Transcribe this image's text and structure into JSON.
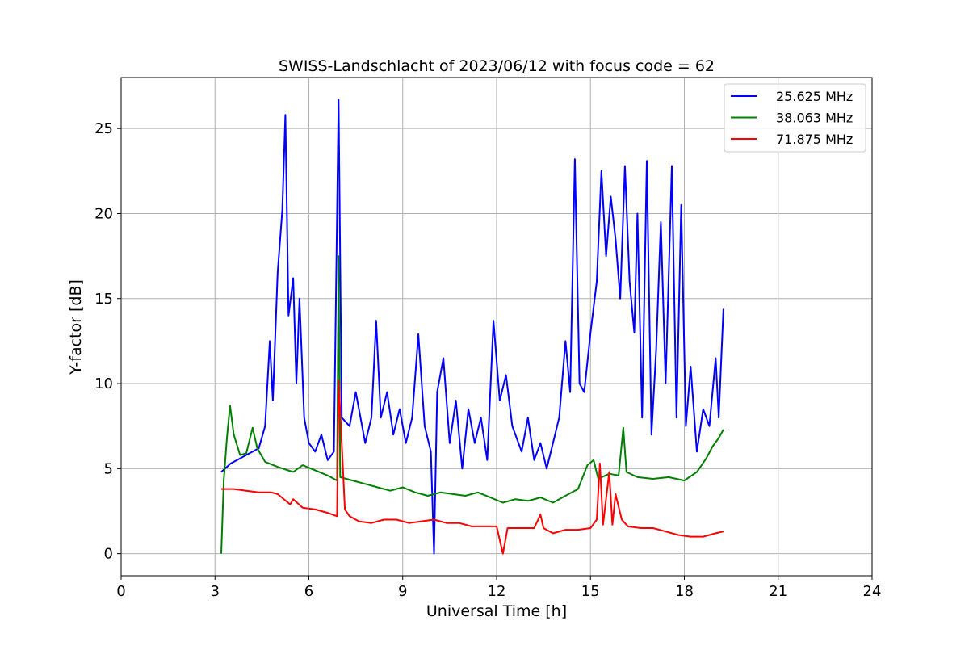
{
  "chart_data": {
    "type": "line",
    "title": "SWISS-Landschlacht of 2023/06/12 with focus code = 62",
    "xlabel": "Universal Time [h]",
    "ylabel": "Y-factor [dB]",
    "xlim": [
      0,
      24
    ],
    "ylim": [
      -1.3,
      28
    ],
    "xticks": [
      0,
      3,
      6,
      9,
      12,
      15,
      18,
      21,
      24
    ],
    "yticks": [
      0,
      5,
      10,
      15,
      20,
      25
    ],
    "grid": true,
    "legend_position": "top-right",
    "series": [
      {
        "name": "25.625 MHz",
        "color": "#0000ff",
        "points": [
          [
            3.2,
            4.8
          ],
          [
            3.5,
            5.3
          ],
          [
            3.8,
            5.6
          ],
          [
            4.1,
            5.9
          ],
          [
            4.4,
            6.2
          ],
          [
            4.6,
            7.5
          ],
          [
            4.75,
            12.5
          ],
          [
            4.85,
            9.0
          ],
          [
            5.0,
            16.5
          ],
          [
            5.15,
            20.2
          ],
          [
            5.25,
            25.8
          ],
          [
            5.35,
            14.0
          ],
          [
            5.5,
            16.2
          ],
          [
            5.6,
            10.0
          ],
          [
            5.7,
            15.0
          ],
          [
            5.85,
            8.0
          ],
          [
            6.0,
            6.5
          ],
          [
            6.2,
            6.0
          ],
          [
            6.4,
            7.0
          ],
          [
            6.6,
            5.5
          ],
          [
            6.8,
            6.0
          ],
          [
            6.95,
            26.7
          ],
          [
            7.05,
            8.0
          ],
          [
            7.3,
            7.5
          ],
          [
            7.5,
            9.5
          ],
          [
            7.8,
            6.5
          ],
          [
            8.0,
            8.0
          ],
          [
            8.15,
            13.7
          ],
          [
            8.3,
            8.0
          ],
          [
            8.5,
            9.5
          ],
          [
            8.7,
            7.0
          ],
          [
            8.9,
            8.5
          ],
          [
            9.1,
            6.5
          ],
          [
            9.3,
            8.0
          ],
          [
            9.5,
            12.9
          ],
          [
            9.7,
            7.5
          ],
          [
            9.9,
            6.0
          ],
          [
            10.0,
            0.0
          ],
          [
            10.1,
            9.5
          ],
          [
            10.3,
            11.5
          ],
          [
            10.5,
            6.5
          ],
          [
            10.7,
            9.0
          ],
          [
            10.9,
            5.0
          ],
          [
            11.1,
            8.5
          ],
          [
            11.3,
            6.5
          ],
          [
            11.5,
            8.0
          ],
          [
            11.7,
            5.5
          ],
          [
            11.9,
            13.7
          ],
          [
            12.1,
            9.0
          ],
          [
            12.3,
            10.5
          ],
          [
            12.5,
            7.5
          ],
          [
            12.8,
            6.0
          ],
          [
            13.0,
            8.0
          ],
          [
            13.2,
            5.5
          ],
          [
            13.4,
            6.5
          ],
          [
            13.6,
            5.0
          ],
          [
            13.8,
            6.5
          ],
          [
            14.0,
            8.0
          ],
          [
            14.2,
            12.5
          ],
          [
            14.35,
            9.5
          ],
          [
            14.5,
            23.2
          ],
          [
            14.65,
            10.0
          ],
          [
            14.8,
            9.5
          ],
          [
            15.0,
            13.0
          ],
          [
            15.2,
            16.0
          ],
          [
            15.35,
            22.5
          ],
          [
            15.5,
            17.5
          ],
          [
            15.65,
            21.0
          ],
          [
            15.8,
            18.5
          ],
          [
            15.95,
            15.0
          ],
          [
            16.1,
            22.8
          ],
          [
            16.25,
            16.0
          ],
          [
            16.4,
            13.0
          ],
          [
            16.5,
            20.0
          ],
          [
            16.65,
            8.0
          ],
          [
            16.8,
            23.1
          ],
          [
            16.95,
            7.0
          ],
          [
            17.1,
            12.0
          ],
          [
            17.25,
            19.5
          ],
          [
            17.4,
            10.0
          ],
          [
            17.6,
            22.8
          ],
          [
            17.75,
            8.0
          ],
          [
            17.9,
            20.5
          ],
          [
            18.05,
            7.5
          ],
          [
            18.2,
            11.0
          ],
          [
            18.4,
            6.0
          ],
          [
            18.6,
            8.5
          ],
          [
            18.8,
            7.5
          ],
          [
            19.0,
            11.5
          ],
          [
            19.1,
            8.0
          ],
          [
            19.25,
            14.4
          ]
        ]
      },
      {
        "name": "38.063 MHz",
        "color": "#008000",
        "points": [
          [
            3.2,
            0.0
          ],
          [
            3.28,
            4.3
          ],
          [
            3.38,
            6.8
          ],
          [
            3.48,
            8.7
          ],
          [
            3.6,
            7.0
          ],
          [
            3.8,
            5.8
          ],
          [
            4.0,
            5.9
          ],
          [
            4.2,
            7.4
          ],
          [
            4.35,
            6.2
          ],
          [
            4.6,
            5.4
          ],
          [
            5.0,
            5.1
          ],
          [
            5.5,
            4.8
          ],
          [
            5.8,
            5.2
          ],
          [
            6.2,
            4.9
          ],
          [
            6.6,
            4.6
          ],
          [
            6.9,
            4.3
          ],
          [
            6.95,
            17.5
          ],
          [
            7.0,
            4.5
          ],
          [
            7.4,
            4.3
          ],
          [
            7.8,
            4.1
          ],
          [
            8.2,
            3.9
          ],
          [
            8.6,
            3.7
          ],
          [
            9.0,
            3.9
          ],
          [
            9.4,
            3.6
          ],
          [
            9.8,
            3.4
          ],
          [
            10.2,
            3.6
          ],
          [
            10.6,
            3.5
          ],
          [
            11.0,
            3.4
          ],
          [
            11.4,
            3.6
          ],
          [
            11.8,
            3.3
          ],
          [
            12.2,
            3.0
          ],
          [
            12.6,
            3.2
          ],
          [
            13.0,
            3.1
          ],
          [
            13.4,
            3.3
          ],
          [
            13.8,
            3.0
          ],
          [
            14.2,
            3.4
          ],
          [
            14.6,
            3.8
          ],
          [
            14.9,
            5.2
          ],
          [
            15.1,
            5.5
          ],
          [
            15.25,
            4.4
          ],
          [
            15.6,
            4.7
          ],
          [
            15.9,
            4.6
          ],
          [
            16.05,
            7.4
          ],
          [
            16.15,
            4.8
          ],
          [
            16.5,
            4.5
          ],
          [
            17.0,
            4.4
          ],
          [
            17.5,
            4.5
          ],
          [
            18.0,
            4.3
          ],
          [
            18.4,
            4.8
          ],
          [
            18.7,
            5.6
          ],
          [
            18.9,
            6.3
          ],
          [
            19.1,
            6.8
          ],
          [
            19.25,
            7.3
          ]
        ]
      },
      {
        "name": "71.875 MHz",
        "color": "#ff0000",
        "points": [
          [
            3.2,
            3.8
          ],
          [
            3.6,
            3.8
          ],
          [
            4.0,
            3.7
          ],
          [
            4.4,
            3.6
          ],
          [
            4.8,
            3.6
          ],
          [
            5.0,
            3.5
          ],
          [
            5.4,
            2.9
          ],
          [
            5.5,
            3.2
          ],
          [
            5.8,
            2.7
          ],
          [
            6.2,
            2.6
          ],
          [
            6.6,
            2.4
          ],
          [
            6.9,
            2.2
          ],
          [
            6.95,
            10.2
          ],
          [
            7.05,
            6.5
          ],
          [
            7.15,
            2.6
          ],
          [
            7.3,
            2.2
          ],
          [
            7.6,
            1.9
          ],
          [
            8.0,
            1.8
          ],
          [
            8.4,
            2.0
          ],
          [
            8.8,
            2.0
          ],
          [
            9.2,
            1.8
          ],
          [
            9.6,
            1.9
          ],
          [
            10.0,
            2.0
          ],
          [
            10.4,
            1.8
          ],
          [
            10.8,
            1.8
          ],
          [
            11.2,
            1.6
          ],
          [
            11.6,
            1.6
          ],
          [
            12.0,
            1.6
          ],
          [
            12.2,
            0.0
          ],
          [
            12.35,
            1.5
          ],
          [
            12.8,
            1.5
          ],
          [
            13.2,
            1.5
          ],
          [
            13.4,
            2.3
          ],
          [
            13.5,
            1.5
          ],
          [
            13.8,
            1.2
          ],
          [
            14.2,
            1.4
          ],
          [
            14.6,
            1.4
          ],
          [
            15.0,
            1.5
          ],
          [
            15.2,
            2.0
          ],
          [
            15.3,
            5.3
          ],
          [
            15.4,
            1.7
          ],
          [
            15.6,
            4.8
          ],
          [
            15.7,
            1.7
          ],
          [
            15.8,
            3.5
          ],
          [
            16.0,
            2.0
          ],
          [
            16.2,
            1.6
          ],
          [
            16.6,
            1.5
          ],
          [
            17.0,
            1.5
          ],
          [
            17.4,
            1.3
          ],
          [
            17.8,
            1.1
          ],
          [
            18.2,
            1.0
          ],
          [
            18.6,
            1.0
          ],
          [
            19.0,
            1.2
          ],
          [
            19.25,
            1.3
          ]
        ]
      }
    ]
  }
}
